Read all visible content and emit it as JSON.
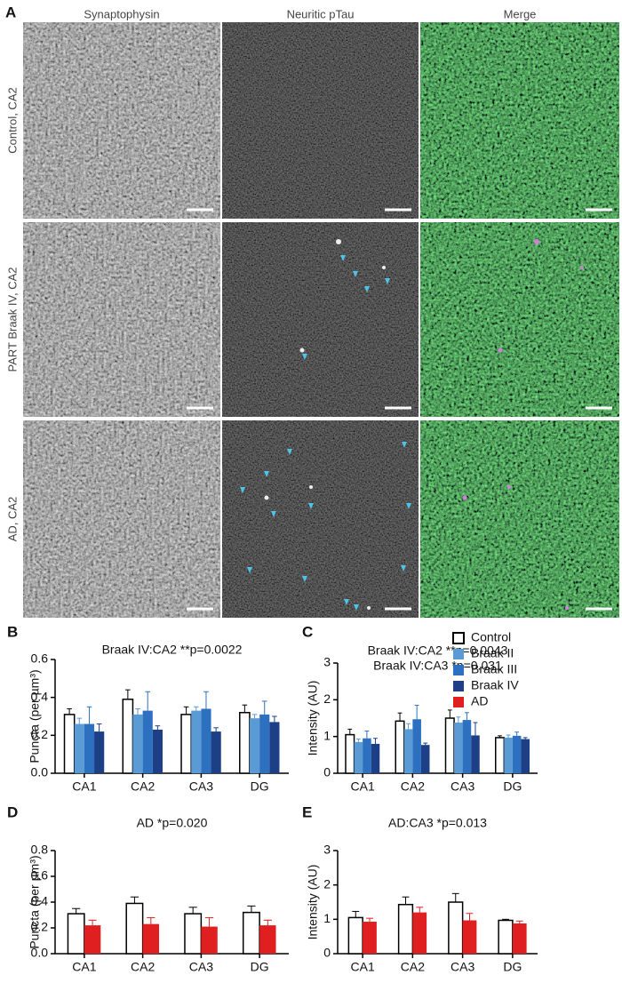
{
  "panel_a": {
    "panel": "A",
    "columns": [
      "Synaptophysin",
      "Neuritic pTau",
      "Merge"
    ],
    "rows": [
      "Control, CA2",
      "PART Braak IV, CA2",
      "AD, CA2"
    ]
  },
  "chart_data": [
    {
      "type": "bar",
      "panel": "B",
      "annotations": [
        "Braak IV:CA2 **p=0.0022"
      ],
      "ylabel": "Puncta (per µm³)",
      "categories": [
        "CA1",
        "CA2",
        "CA3",
        "DG"
      ],
      "ylim": [
        0,
        0.6
      ],
      "yticks": [
        {
          "value": 0,
          "label": "0.0"
        },
        0.2,
        0.4,
        0.6
      ],
      "series": [
        {
          "name": "Control",
          "color": "#ffffff",
          "values": [
            0.31,
            0.39,
            0.31,
            0.32
          ],
          "errors": [
            0.03,
            0.05,
            0.04,
            0.04
          ]
        },
        {
          "name": "Braak II",
          "color": "#5b9bd5",
          "values": [
            0.26,
            0.31,
            0.33,
            0.29
          ],
          "errors": [
            0.03,
            0.03,
            0.02,
            0.02
          ]
        },
        {
          "name": "Braak III",
          "color": "#2e70c0",
          "values": [
            0.26,
            0.33,
            0.34,
            0.31
          ],
          "errors": [
            0.09,
            0.1,
            0.09,
            0.07
          ]
        },
        {
          "name": "Braak IV",
          "color": "#1c3f86",
          "values": [
            0.22,
            0.23,
            0.22,
            0.27
          ],
          "errors": [
            0.04,
            0.02,
            0.02,
            0.03
          ]
        }
      ]
    },
    {
      "type": "bar",
      "panel": "C",
      "annotations": [
        "Braak IV:CA2 **p=0.0043",
        "Braak IV:CA3 *p=0.031"
      ],
      "ylabel": "Intensity (AU)",
      "categories": [
        "CA1",
        "CA2",
        "CA3",
        "DG"
      ],
      "ylim": [
        0,
        3
      ],
      "yticks": [
        0,
        1,
        2,
        3
      ],
      "series": [
        {
          "name": "Control",
          "color": "#ffffff",
          "values": [
            1.05,
            1.42,
            1.5,
            0.97
          ],
          "errors": [
            0.15,
            0.22,
            0.22,
            0.05
          ]
        },
        {
          "name": "Braak II",
          "color": "#5b9bd5",
          "values": [
            0.85,
            1.2,
            1.38,
            0.97
          ],
          "errors": [
            0.08,
            0.15,
            0.15,
            0.07
          ]
        },
        {
          "name": "Braak III",
          "color": "#2e70c0",
          "values": [
            0.95,
            1.47,
            1.45,
            1.02
          ],
          "errors": [
            0.2,
            0.38,
            0.2,
            0.1
          ]
        },
        {
          "name": "Braak IV",
          "color": "#1c3f86",
          "values": [
            0.8,
            0.77,
            1.03,
            0.93
          ],
          "errors": [
            0.15,
            0.05,
            0.35,
            0.04
          ]
        }
      ]
    },
    {
      "type": "bar",
      "panel": "D",
      "annotations": [
        "AD *p=0.020"
      ],
      "ylabel": "Puncta (per µm³)",
      "categories": [
        "CA1",
        "CA2",
        "CA3",
        "DG"
      ],
      "ylim": [
        0,
        0.8
      ],
      "yticks": [
        {
          "value": 0,
          "label": "0.0"
        },
        0.2,
        0.4,
        0.6,
        0.8
      ],
      "series": [
        {
          "name": "Control",
          "color": "#ffffff",
          "values": [
            0.31,
            0.39,
            0.31,
            0.32
          ],
          "errors": [
            0.04,
            0.05,
            0.05,
            0.05
          ]
        },
        {
          "name": "AD",
          "color": "#e02020",
          "values": [
            0.22,
            0.23,
            0.21,
            0.22
          ],
          "errors": [
            0.04,
            0.05,
            0.07,
            0.04
          ]
        }
      ]
    },
    {
      "type": "bar",
      "panel": "E",
      "annotations": [
        "AD:CA3 *p=0.013"
      ],
      "ylabel": "Intensity (AU)",
      "categories": [
        "CA1",
        "CA2",
        "CA3",
        "DG"
      ],
      "ylim": [
        0,
        3
      ],
      "yticks": [
        0,
        1,
        2,
        3
      ],
      "series": [
        {
          "name": "Control",
          "color": "#ffffff",
          "values": [
            1.05,
            1.43,
            1.5,
            0.97
          ],
          "errors": [
            0.18,
            0.22,
            0.25,
            0.03
          ]
        },
        {
          "name": "AD",
          "color": "#e02020",
          "values": [
            0.93,
            1.2,
            0.97,
            0.88
          ],
          "errors": [
            0.1,
            0.15,
            0.2,
            0.07
          ]
        }
      ]
    }
  ]
}
